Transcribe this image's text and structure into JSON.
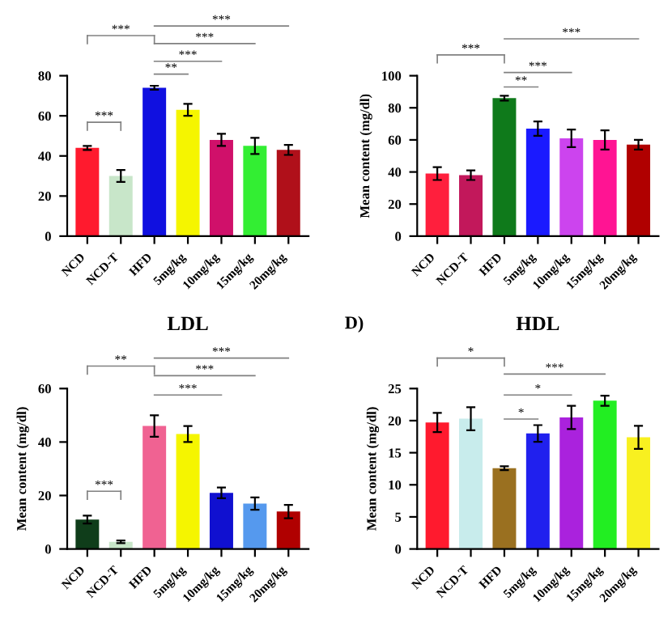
{
  "chart_data": [
    {
      "type": "bar",
      "categories": [
        "NCD",
        "NCD-T",
        "HFD",
        "5mg/kg",
        "10mg/kg",
        "15mg/kg",
        "20mg/kg"
      ],
      "values": [
        44,
        30,
        74,
        63,
        48,
        45,
        43
      ],
      "errors": [
        1,
        3,
        1,
        3,
        3,
        4,
        2.5
      ],
      "colors": [
        "#ff1a2e",
        "#c8e6c9",
        "#1010e0",
        "#f5f500",
        "#d0106a",
        "#33ee33",
        "#b0101a"
      ],
      "ylim": [
        0,
        80
      ],
      "yticks": [
        0,
        20,
        40,
        60,
        80
      ],
      "annotations": [
        "***",
        "***",
        "**",
        "***",
        "***",
        "***"
      ]
    },
    {
      "type": "bar",
      "ylabel": "Mean content (mg/dl)",
      "categories": [
        "NCD",
        "NCD-T",
        "HFD",
        "5mg/kg",
        "10mg/kg",
        "15mg/kg",
        "20mg/kg"
      ],
      "values": [
        39,
        38,
        86,
        67,
        61,
        60,
        57
      ],
      "errors": [
        4,
        3,
        1.5,
        4.5,
        5.5,
        6,
        3
      ],
      "colors": [
        "#ff1f3d",
        "#c2185b",
        "#0f7a1b",
        "#1a1aff",
        "#cc44ee",
        "#ff1493",
        "#b00000"
      ],
      "ylim": [
        0,
        100
      ],
      "yticks": [
        0,
        20,
        40,
        60,
        80,
        100
      ],
      "annotations": [
        "***",
        "**",
        "***",
        "***"
      ]
    },
    {
      "type": "bar",
      "title": "LDL",
      "ylabel": "Mean content (mg/dl)",
      "categories": [
        "NCD",
        "NCD-T",
        "HFD",
        "5mg/kg",
        "10mg/kg",
        "15mg/kg",
        "20mg/kg"
      ],
      "values": [
        11,
        2.7,
        46,
        43,
        21,
        17,
        14
      ],
      "errors": [
        1.5,
        0.5,
        4,
        3,
        2,
        2.3,
        2.5
      ],
      "colors": [
        "#0f3d1a",
        "#c8e6c9",
        "#f06292",
        "#f5f500",
        "#1010d0",
        "#5599ee",
        "#b00000"
      ],
      "ylim": [
        0,
        60
      ],
      "yticks": [
        0,
        20,
        40,
        60
      ],
      "annotations": [
        "***",
        "**",
        "***",
        "***",
        "***"
      ]
    },
    {
      "type": "bar",
      "title": "HDL",
      "ylabel": "Mean content (mg/dl)",
      "categories": [
        "NCD",
        "NCD-T",
        "HFD",
        "5mg/kg",
        "10mg/kg",
        "15mg/kg",
        "20mg/kg"
      ],
      "values": [
        19.7,
        20.3,
        12.6,
        18,
        20.5,
        23.1,
        17.4
      ],
      "errors": [
        1.5,
        1.8,
        0.3,
        1.3,
        1.8,
        0.8,
        1.8
      ],
      "colors": [
        "#ff1a2e",
        "#c8ecec",
        "#9a7020",
        "#2020ee",
        "#aa22dd",
        "#22ee22",
        "#f8f020"
      ],
      "ylim": [
        0,
        25
      ],
      "yticks": [
        0,
        5,
        10,
        15,
        20,
        25
      ],
      "annotations": [
        "D)",
        "*",
        "*",
        "*",
        "***"
      ]
    }
  ]
}
